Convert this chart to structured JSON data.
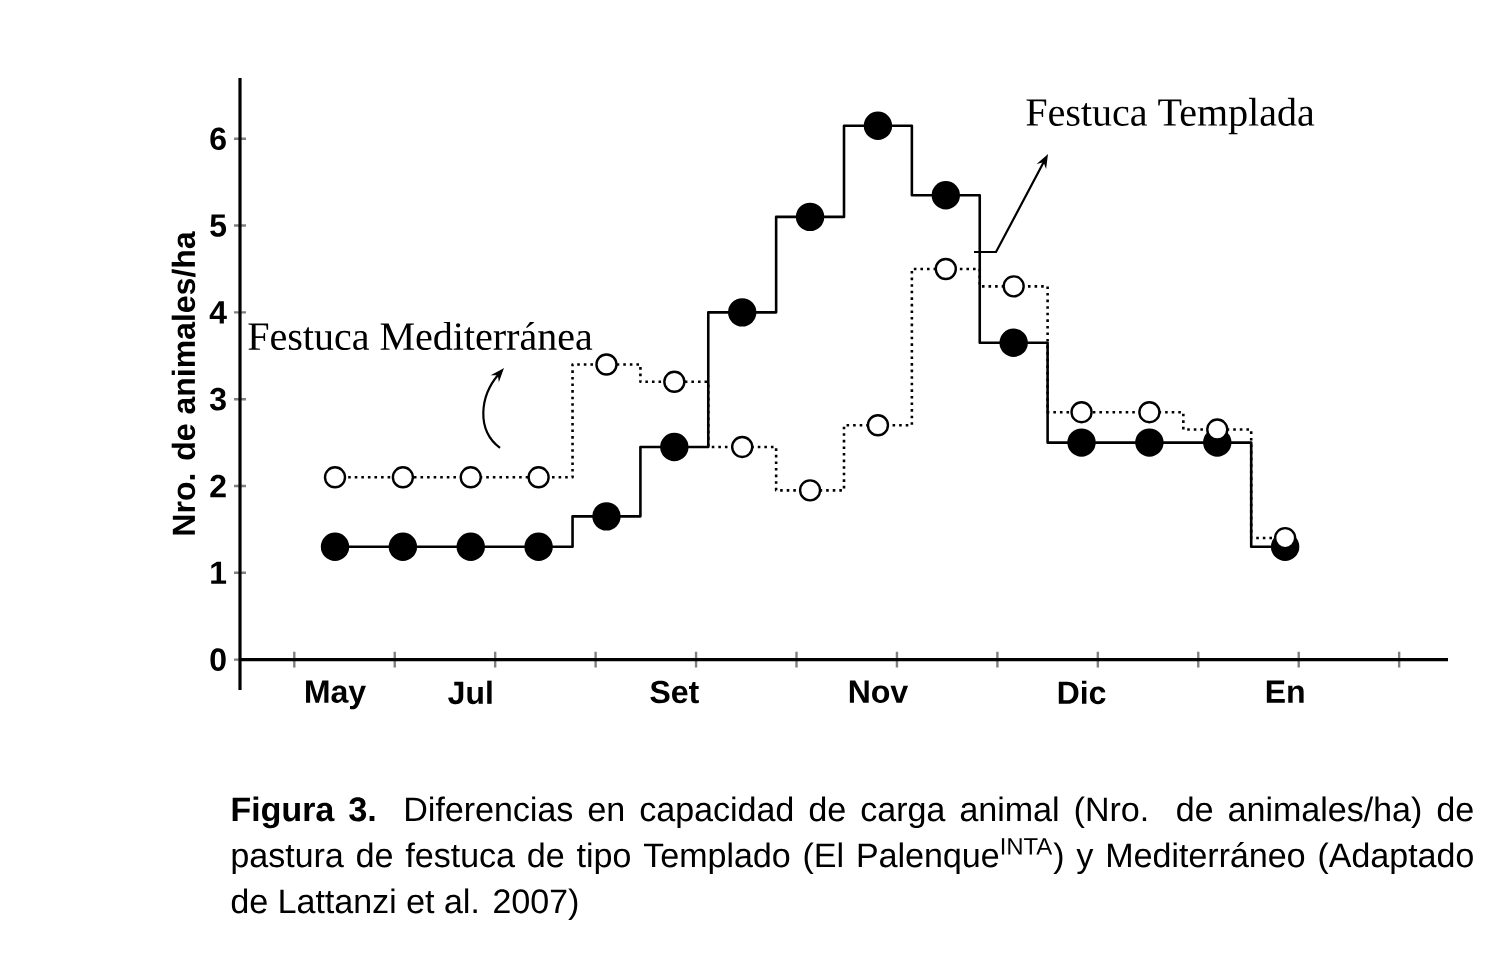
{
  "chart_data": {
    "type": "step",
    "ylabel": "Nro. de animales/ha",
    "categories": [
      "May",
      null,
      "Jul",
      null,
      null,
      "Set",
      null,
      null,
      "Nov",
      null,
      null,
      "Dic",
      null,
      null,
      "En"
    ],
    "ylim": [
      -0.35,
      6.7
    ],
    "yticks": [
      0,
      1,
      2,
      3,
      4,
      5,
      6
    ],
    "marker": "circle",
    "grid": false,
    "legend": false,
    "series": [
      {
        "name": "Festuca Templada",
        "color": "#000000",
        "line_style": "solid",
        "values": [
          1.3,
          1.3,
          1.3,
          1.3,
          1.65,
          2.45,
          4.0,
          5.1,
          6.15,
          5.35,
          3.65,
          2.5,
          2.5,
          2.5,
          1.3
        ]
      },
      {
        "name": "Festuca Mediterránea",
        "color": "#000000",
        "line_style": "dotted",
        "values": [
          2.1,
          2.1,
          2.1,
          2.1,
          3.4,
          3.2,
          2.45,
          1.95,
          2.7,
          4.5,
          4.3,
          2.85,
          2.85,
          2.65,
          1.4
        ]
      }
    ],
    "annotations": [
      "**Figura 3.** Diferencias en capacidad de carga animal (Nro. de animales/ha) de pastura de festuca de tipo Templado (El Palenque$^{INTA}$) y Mediterráneo (Adaptado de Lattanzi et al. 2007)"
    ]
  }
}
